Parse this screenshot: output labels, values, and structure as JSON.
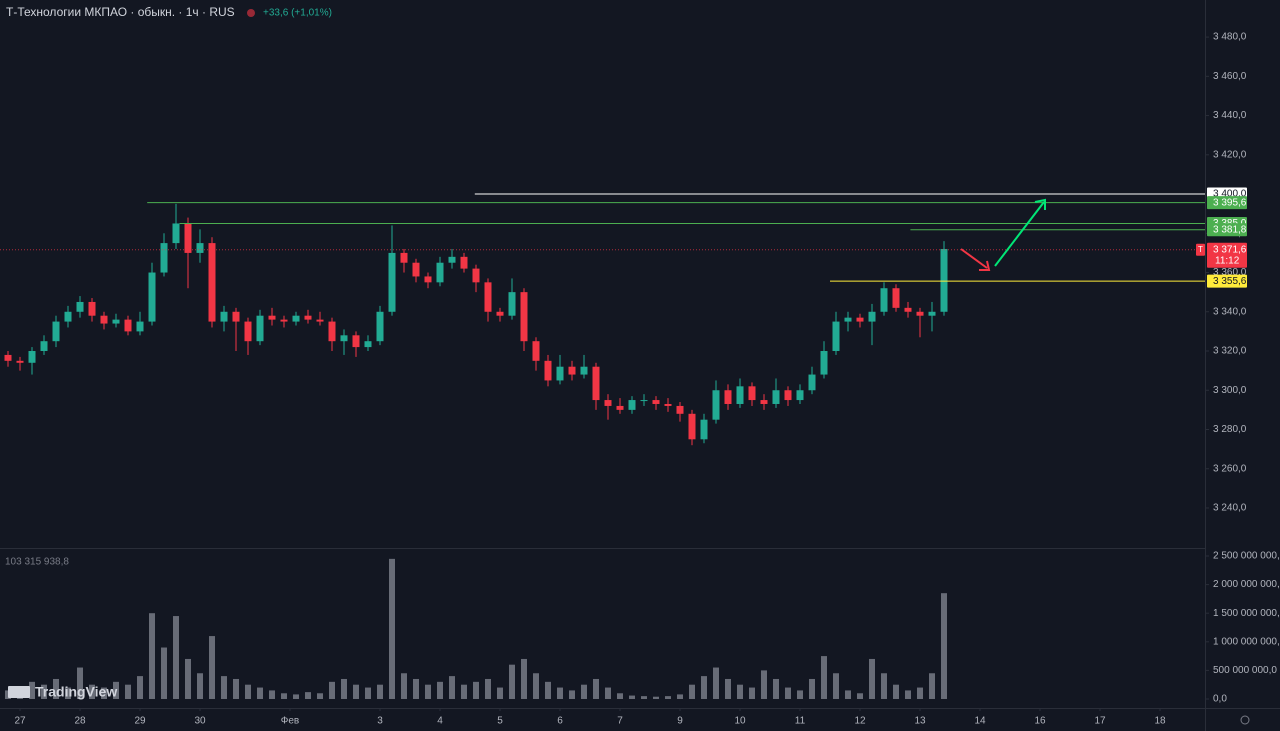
{
  "logo": "TradingView",
  "chart_data": [
    {
      "type": "candlestick",
      "title": "Т-Технологии МКПАО · обыкн. · 1ч · RUS",
      "change_label": "+33,6 (+1,01%)",
      "up_color": "#22ab94",
      "down_color": "#f23645",
      "x": [
        -1,
        0,
        1,
        2,
        3,
        4,
        5,
        6,
        7,
        8,
        9,
        10,
        11,
        12,
        13,
        14,
        15,
        16,
        17,
        18,
        19,
        20,
        21,
        22,
        23,
        24,
        25,
        26,
        27,
        28,
        29,
        30,
        31,
        32,
        33,
        34,
        35,
        36,
        37,
        38,
        39,
        40,
        41,
        42,
        43,
        44,
        45,
        46,
        47,
        48,
        49,
        50,
        51,
        52,
        53,
        54,
        55,
        56,
        57,
        58,
        59,
        60,
        61,
        62,
        63,
        64,
        65,
        66,
        67,
        68,
        69,
        70,
        71,
        72,
        73,
        74,
        75,
        76,
        77
      ],
      "open": [
        3318,
        3315,
        3314,
        3320,
        3325,
        3335,
        3340,
        3345,
        3338,
        3334,
        3336,
        3330,
        3335,
        3360,
        3375,
        3385,
        3370,
        3375,
        3335,
        3340,
        3335,
        3325,
        3338,
        3336,
        3335,
        3338,
        3336,
        3335,
        3325,
        3328,
        3322,
        3325,
        3340,
        3370,
        3365,
        3358,
        3355,
        3365,
        3368,
        3362,
        3355,
        3340,
        3338,
        3350,
        3325,
        3315,
        3305,
        3312,
        3308,
        3312,
        3295,
        3292,
        3290,
        3295,
        3295,
        3293,
        3292,
        3288,
        3275,
        3285,
        3300,
        3293,
        3302,
        3295,
        3293,
        3300,
        3295,
        3300,
        3308,
        3320,
        3335,
        3337,
        3335,
        3340,
        3352,
        3342,
        3340,
        3338,
        3340
      ],
      "high": [
        3320,
        3317,
        3322,
        3328,
        3338,
        3343,
        3348,
        3347,
        3340,
        3339,
        3338,
        3340,
        3365,
        3380,
        3395,
        3388,
        3382,
        3378,
        3343,
        3342,
        3337,
        3341,
        3342,
        3338,
        3340,
        3341,
        3340,
        3337,
        3331,
        3330,
        3328,
        3343,
        3384,
        3372,
        3367,
        3360,
        3368,
        3372,
        3370,
        3364,
        3357,
        3342,
        3357,
        3352,
        3327,
        3318,
        3318,
        3315,
        3318,
        3314,
        3298,
        3296,
        3297,
        3298,
        3297,
        3296,
        3294,
        3290,
        3288,
        3305,
        3303,
        3306,
        3304,
        3298,
        3306,
        3302,
        3303,
        3312,
        3325,
        3340,
        3340,
        3339,
        3344,
        3355,
        3354,
        3345,
        3342,
        3345,
        3376
      ],
      "low": [
        3312,
        3310,
        3308,
        3318,
        3322,
        3332,
        3337,
        3335,
        3331,
        3332,
        3328,
        3328,
        3333,
        3358,
        3372,
        3352,
        3365,
        3332,
        3330,
        3320,
        3318,
        3323,
        3333,
        3332,
        3333,
        3334,
        3333,
        3320,
        3318,
        3317,
        3320,
        3323,
        3338,
        3360,
        3355,
        3352,
        3353,
        3362,
        3360,
        3350,
        3335,
        3335,
        3336,
        3320,
        3310,
        3302,
        3303,
        3305,
        3306,
        3290,
        3285,
        3288,
        3288,
        3292,
        3290,
        3289,
        3284,
        3272,
        3273,
        3283,
        3290,
        3291,
        3292,
        3290,
        3291,
        3292,
        3293,
        3298,
        3306,
        3318,
        3330,
        3332,
        3323,
        3338,
        3340,
        3337,
        3327,
        3330,
        3338
      ],
      "close": [
        3315,
        3314,
        3320,
        3325,
        3335,
        3340,
        3345,
        3338,
        3334,
        3336,
        3330,
        3335,
        3360,
        3375,
        3385,
        3370,
        3375,
        3335,
        3340,
        3335,
        3325,
        3338,
        3336,
        3335,
        3338,
        3336,
        3335,
        3325,
        3328,
        3322,
        3325,
        3340,
        3370,
        3365,
        3358,
        3355,
        3365,
        3368,
        3362,
        3355,
        3340,
        3338,
        3350,
        3325,
        3315,
        3305,
        3312,
        3308,
        3312,
        3295,
        3292,
        3290,
        3295,
        3295,
        3293,
        3292,
        3288,
        3275,
        3285,
        3300,
        3293,
        3302,
        3295,
        3293,
        3300,
        3295,
        3300,
        3308,
        3320,
        3335,
        3337,
        3335,
        3340,
        3352,
        3342,
        3340,
        3338,
        3340,
        3372
      ],
      "xlim": [
        -1.667,
        98.75
      ],
      "ylim": [
        3219.6,
        3498.9
      ],
      "yticks": [
        {
          "value": 3240,
          "label": "3 240,0"
        },
        {
          "value": 3260,
          "label": "3 260,0"
        },
        {
          "value": 3280,
          "label": "3 280,0"
        },
        {
          "value": 3300,
          "label": "3 300,0"
        },
        {
          "value": 3320,
          "label": "3 320,0"
        },
        {
          "value": 3340,
          "label": "3 340,0"
        },
        {
          "value": 3360,
          "label": "3 360,0"
        },
        {
          "value": 3380,
          "label": "3 380,0"
        },
        {
          "value": 3400,
          "label": "3 400,0"
        },
        {
          "value": 3420,
          "label": "3 420,0"
        },
        {
          "value": 3440,
          "label": "3 440,0"
        },
        {
          "value": 3460,
          "label": "3 460,0"
        },
        {
          "value": 3480,
          "label": "3 480,0"
        }
      ],
      "levels": [
        {
          "value": 3400,
          "label": "3 400,0",
          "color": "#ffffff",
          "text_color": "#131722",
          "from_x": 37.9
        },
        {
          "value": 3395.6,
          "label": "3 395,6",
          "color": "#4caf50",
          "text_color": "#ffffff",
          "from_x": 10.6
        },
        {
          "value": 3385,
          "label": "3 385,0",
          "color": "#4caf50",
          "text_color": "#ffffff",
          "from_x": 13.3
        },
        {
          "value": 3381.8,
          "label": "3 381,8",
          "color": "#4caf50",
          "text_color": "#ffffff",
          "from_x": 74.2
        },
        {
          "value": 3355.6,
          "label": "3 355,6",
          "color": "#ffeb3b",
          "text_color": "#131722",
          "from_x": 67.5
        }
      ],
      "last_price": {
        "value": 3371.6,
        "label": "3 371,6",
        "countdown": "11:12",
        "badge": "T",
        "color": "#f23645"
      }
    },
    {
      "type": "bar",
      "legend_label": "103 315 938,8",
      "color": "#787b86",
      "x": [
        -1,
        0,
        1,
        2,
        3,
        4,
        5,
        6,
        7,
        8,
        9,
        10,
        11,
        12,
        13,
        14,
        15,
        16,
        17,
        18,
        19,
        20,
        21,
        22,
        23,
        24,
        25,
        26,
        27,
        28,
        29,
        30,
        31,
        32,
        33,
        34,
        35,
        36,
        37,
        38,
        39,
        40,
        41,
        42,
        43,
        44,
        45,
        46,
        47,
        48,
        49,
        50,
        51,
        52,
        53,
        54,
        55,
        56,
        57,
        58,
        59,
        60,
        61,
        62,
        63,
        64,
        65,
        66,
        67,
        68,
        69,
        70,
        71,
        72,
        73,
        74,
        75,
        76,
        77
      ],
      "values": [
        150000000,
        200000000,
        300000000,
        250000000,
        350000000,
        200000000,
        550000000,
        250000000,
        200000000,
        300000000,
        250000000,
        400000000,
        1500000000,
        900000000,
        1450000000,
        700000000,
        450000000,
        1100000000,
        400000000,
        350000000,
        250000000,
        200000000,
        150000000,
        100000000,
        80000000,
        120000000,
        100000000,
        300000000,
        350000000,
        250000000,
        200000000,
        250000000,
        2450000000,
        450000000,
        350000000,
        250000000,
        300000000,
        400000000,
        250000000,
        300000000,
        350000000,
        200000000,
        600000000,
        700000000,
        450000000,
        300000000,
        200000000,
        150000000,
        250000000,
        350000000,
        200000000,
        100000000,
        60000000,
        50000000,
        40000000,
        50000000,
        80000000,
        250000000,
        400000000,
        550000000,
        350000000,
        250000000,
        200000000,
        500000000,
        350000000,
        200000000,
        150000000,
        350000000,
        750000000,
        450000000,
        150000000,
        100000000,
        700000000,
        450000000,
        250000000,
        150000000,
        200000000,
        450000000,
        1850000000
      ],
      "xlim": [
        -1.667,
        98.75
      ],
      "ylim": [
        -105000000,
        2570000000
      ],
      "yticks": [
        {
          "value": 0,
          "label": "0,0"
        },
        {
          "value": 500000000,
          "label": "500 000 000,0"
        },
        {
          "value": 1000000000,
          "label": "1 000 000 000,0"
        },
        {
          "value": 1500000000,
          "label": "1 500 000 000,0"
        },
        {
          "value": 2000000000,
          "label": "2 000 000 000,0"
        },
        {
          "value": 2500000000,
          "label": "2 500 000 000,0"
        }
      ],
      "xticks": [
        {
          "value": 0,
          "label": "27"
        },
        {
          "value": 5,
          "label": "28"
        },
        {
          "value": 10,
          "label": "29"
        },
        {
          "value": 15,
          "label": "30"
        },
        {
          "value": 22.5,
          "label": "Фев"
        },
        {
          "value": 30,
          "label": "3"
        },
        {
          "value": 35,
          "label": "4"
        },
        {
          "value": 40,
          "label": "5"
        },
        {
          "value": 45,
          "label": "6"
        },
        {
          "value": 50,
          "label": "7"
        },
        {
          "value": 55,
          "label": "9"
        },
        {
          "value": 60,
          "label": "10"
        },
        {
          "value": 65,
          "label": "11"
        },
        {
          "value": 70,
          "label": "12"
        },
        {
          "value": 75,
          "label": "13"
        },
        {
          "value": 80,
          "label": "14"
        },
        {
          "value": 85,
          "label": "16"
        },
        {
          "value": 90,
          "label": "17"
        },
        {
          "value": 95,
          "label": "18"
        }
      ]
    }
  ]
}
